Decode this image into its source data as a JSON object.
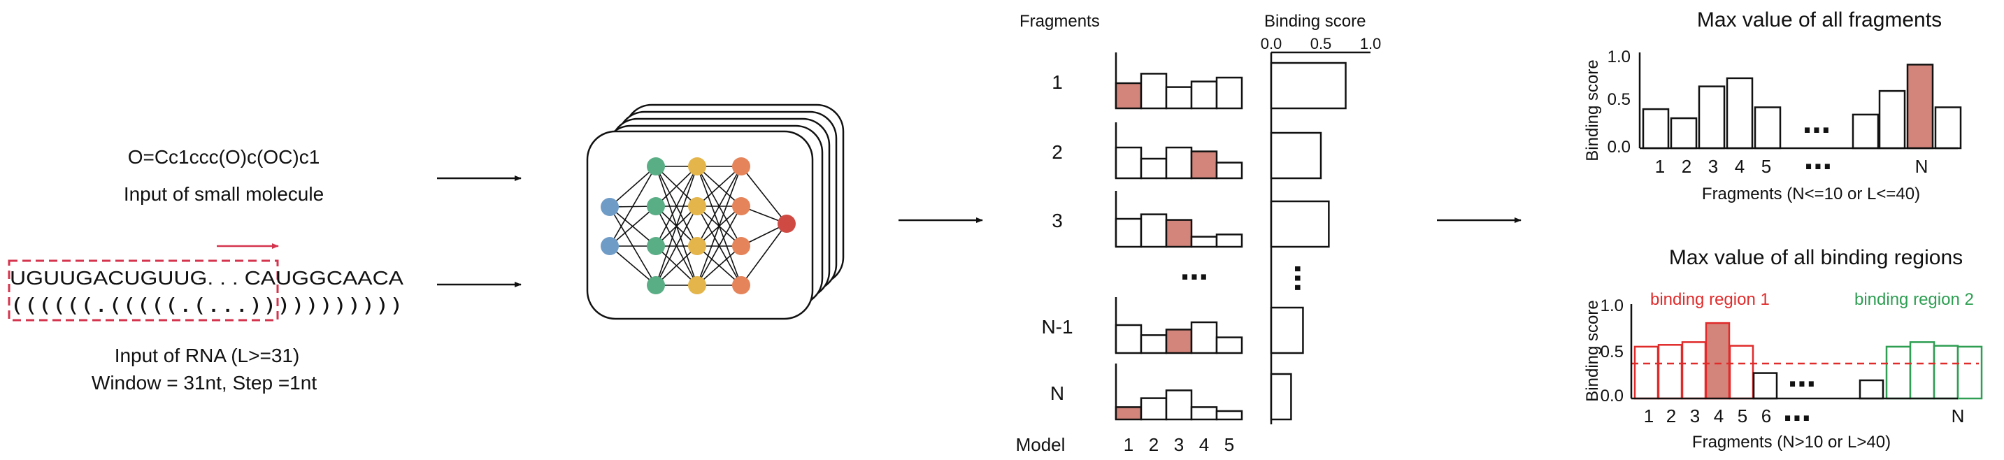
{
  "input": {
    "smiles": "O=Cc1ccc(O)c(OC)c1",
    "smiles_caption": "Input of small molecule",
    "rna_sequence": "UGUUGACUGUUG. . . CAUGGCAACA",
    "rna_structure": "((((((.(((((.(...)))))))))))",
    "rna_caption_1": "Input of RNA (L>=31)",
    "rna_caption_2": "Window = 31nt, Step =1nt"
  },
  "ensemble": {
    "fragments_header": "Fragments",
    "score_header": "Binding score",
    "score_ticks": [
      "0.0",
      "0.5",
      "1.0"
    ],
    "row_labels": [
      "1",
      "2",
      "3",
      "N-1",
      "N"
    ],
    "ellipsis": "⋯",
    "model_label": "Model",
    "model_numbers": [
      "1",
      "2",
      "3",
      "4",
      "5"
    ],
    "rows": [
      {
        "bars": [
          0.45,
          0.62,
          0.38,
          0.48,
          0.55
        ],
        "highlight": 0,
        "score": 0.75
      },
      {
        "bars": [
          0.55,
          0.35,
          0.55,
          0.48,
          0.28
        ],
        "highlight": 3,
        "score": 0.5
      },
      {
        "bars": [
          0.5,
          0.58,
          0.48,
          0.18,
          0.22
        ],
        "highlight": 2,
        "score": 0.58
      },
      {
        "bars": [
          0.5,
          0.32,
          0.42,
          0.55,
          0.28
        ],
        "highlight": 2,
        "score": 0.32
      },
      {
        "bars": [
          0.22,
          0.38,
          0.52,
          0.22,
          0.15
        ],
        "highlight": 0,
        "score": 0.2
      }
    ]
  },
  "chart_data": [
    {
      "type": "bar",
      "title": "Max value of all fragments",
      "ylabel": "Binding score",
      "xlabel": "Fragments (N<=10 or L<=40)",
      "yticks": [
        "0.0",
        "0.5",
        "1.0"
      ],
      "ylim": [
        0,
        1
      ],
      "categories": [
        "1",
        "2",
        "3",
        "4",
        "5",
        "",
        "",
        "N",
        ""
      ],
      "values": [
        0.43,
        0.33,
        0.68,
        0.77,
        0.45,
        0.37,
        0.63,
        0.92,
        0.45
      ],
      "highlight_index": 7,
      "ellipsis": "⋯"
    },
    {
      "type": "bar",
      "title": "Max value of all binding regions",
      "ylabel": "Binding score",
      "xlabel": "Fragments (N>10 or L>40)",
      "yticks": [
        "0.0",
        "0.5",
        "1.0"
      ],
      "ylim": [
        0,
        1
      ],
      "threshold": 0.5,
      "categories": [
        "1",
        "2",
        "3",
        "4",
        "5",
        "6",
        "",
        "",
        "",
        "",
        "N"
      ],
      "values": [
        0.57,
        0.59,
        0.62,
        0.83,
        0.58,
        0.28,
        0.2,
        0.57,
        0.62,
        0.58,
        0.57
      ],
      "highlight_index": 3,
      "region_1_label": "binding region 1",
      "region_2_label": "binding region 2",
      "ellipsis": "⋯"
    }
  ],
  "colors": {
    "highlight": "#d4857b",
    "region_1": "#e02b2b",
    "region_2": "#2e9e52",
    "dashed_box": "#d5344e",
    "node_blue": "#6f9cc7",
    "node_green": "#5aae86",
    "node_yellow": "#e3b54a",
    "node_orange": "#e5845a",
    "node_red": "#cf4a43"
  }
}
